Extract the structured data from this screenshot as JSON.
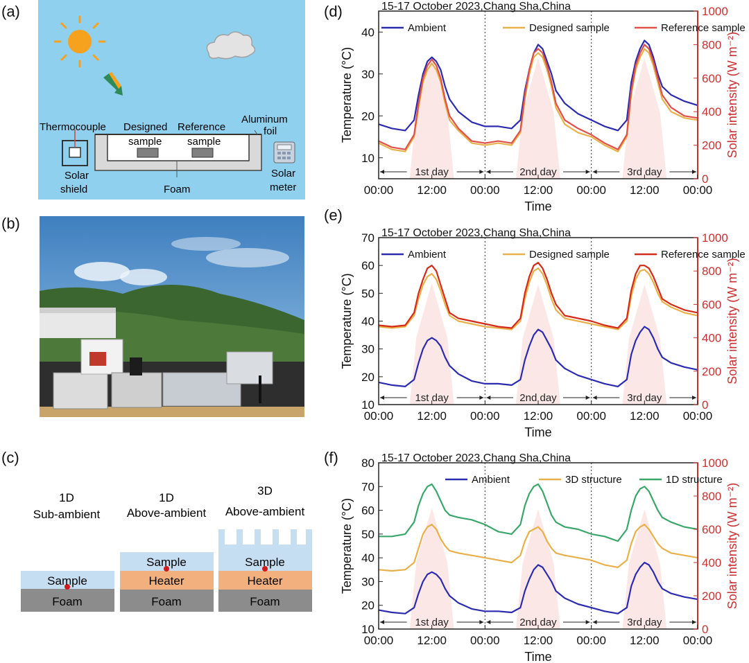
{
  "panel_labels": {
    "a": "(a)",
    "b": "(b)",
    "c": "(c)",
    "d": "(d)",
    "e": "(e)",
    "f": "(f)"
  },
  "panel_a": {
    "thermocouple": "Thermocouple",
    "designed_line1": "Designed",
    "designed_line2": "sample",
    "reference_line1": "Reference",
    "reference_line2": "sample",
    "aluminum_line1": "Aluminum",
    "aluminum_line2": "foil",
    "solar_shield_line1": "Solar",
    "solar_shield_line2": "shield",
    "foam": "Foam",
    "solar_meter_line1": "Solar",
    "solar_meter_line2": "meter",
    "colors": {
      "sky": "#8fd0ef",
      "sun": "#f6a21e",
      "foam": "#d9d9d9"
    }
  },
  "panel_c": {
    "col1_line1": "1D",
    "col1_line2": "Sub-ambient",
    "col2_line1": "1D",
    "col2_line2": "Above-ambient",
    "col3_line1": "3D",
    "col3_line2": "Above-ambient",
    "sample": "Sample",
    "heater": "Heater",
    "foam": "Foam",
    "colors": {
      "sample": "#c5def2",
      "heater": "#f2b07f",
      "foam": "#8c8c8c",
      "dot": "#d11b1b"
    }
  },
  "chart_data": [
    {
      "type": "line",
      "title": "15-17 October 2023,Chang Sha,China",
      "xlabel": "Time",
      "ylabel": "Temperature (°C)",
      "y2label": "Solar intensity (W m⁻²)",
      "ylim": [
        5,
        45
      ],
      "y2lim": [
        0,
        1000
      ],
      "yticks": [
        10,
        20,
        30,
        40
      ],
      "y2ticks": [
        0,
        200,
        400,
        600,
        800,
        1000
      ],
      "xticks": [
        "00:00",
        "12:00",
        "00:00",
        "12:00",
        "00:00",
        "12:00",
        "00:00"
      ],
      "day_labels": [
        "1st day",
        "2nd day",
        "3rd day"
      ],
      "legend": [
        "Ambient",
        "Designed sample",
        "Reference sample"
      ],
      "colors": {
        "Ambient": "#2b2bb0",
        "Designed sample": "#e8b04a",
        "Reference sample": "#e0504a",
        "solar": "#fce4e4",
        "y2axis": "#c93030"
      },
      "x": [
        0,
        3,
        6,
        8,
        9,
        10,
        11,
        12,
        13,
        14,
        15,
        16,
        18,
        21,
        24,
        27,
        30,
        32,
        33,
        34,
        35,
        36,
        37,
        38,
        39,
        40,
        42,
        45,
        48,
        51,
        54,
        56,
        57,
        58,
        59,
        60,
        61,
        62,
        63,
        64,
        66,
        69,
        72
      ],
      "series": [
        {
          "name": "Ambient",
          "values": [
            18,
            17,
            16.5,
            19,
            25,
            30,
            33,
            34,
            33,
            31,
            27,
            24,
            21,
            18.5,
            17.5,
            17.5,
            17,
            19,
            26,
            31,
            35,
            37,
            36,
            33,
            30,
            26,
            23,
            20.5,
            19,
            17.5,
            16.5,
            19,
            28,
            33,
            36,
            38,
            37,
            34,
            30,
            27,
            25,
            23.5,
            22.5
          ]
        },
        {
          "name": "Designed sample",
          "values": [
            13.5,
            12,
            11.5,
            15,
            22,
            28,
            31,
            32.5,
            31,
            28,
            23,
            19,
            16.5,
            13.5,
            13,
            13.5,
            13,
            16,
            24,
            30,
            34,
            35,
            34,
            31,
            27,
            22,
            18,
            16,
            15,
            13,
            11.5,
            15,
            25,
            31,
            34,
            36,
            35,
            32,
            28,
            24,
            21,
            19.5,
            19
          ]
        },
        {
          "name": "Reference sample",
          "values": [
            14,
            12.5,
            12,
            15.5,
            23,
            29,
            32,
            33.5,
            32,
            29,
            24,
            20,
            17,
            14,
            13.5,
            14,
            13.5,
            16.5,
            25,
            31,
            35,
            36,
            35,
            32,
            28,
            23,
            19,
            17,
            15.5,
            13.5,
            12,
            15.5,
            26,
            32,
            35,
            37,
            36,
            33,
            29,
            25,
            22,
            20,
            19.5
          ]
        }
      ],
      "solar": [
        {
          "start": 7,
          "end": 17,
          "peak": 730
        },
        {
          "start": 31,
          "end": 41,
          "peak": 720
        },
        {
          "start": 55,
          "end": 65,
          "peak": 720
        }
      ]
    },
    {
      "type": "line",
      "title": "15-17 October 2023,Chang Sha,China",
      "xlabel": "Time",
      "ylabel": "Temperature (°C)",
      "y2label": "Solar intensity (W m⁻²)",
      "ylim": [
        10,
        70
      ],
      "y2lim": [
        0,
        1000
      ],
      "yticks": [
        10,
        20,
        30,
        40,
        50,
        60,
        70
      ],
      "y2ticks": [
        0,
        200,
        400,
        600,
        800,
        1000
      ],
      "xticks": [
        "00:00",
        "12:00",
        "00:00",
        "12:00",
        "00:00",
        "12:00",
        "00:00"
      ],
      "day_labels": [
        "1st day",
        "2nd day",
        "3rd day"
      ],
      "legend": [
        "Ambient",
        "Designed sample",
        "Reference sample"
      ],
      "colors": {
        "Ambient": "#2b2bb0",
        "Designed sample": "#e8b04a",
        "Reference sample": "#d42a1a",
        "solar": "#fce4e4",
        "y2axis": "#c93030"
      },
      "x": [
        0,
        3,
        6,
        8,
        9,
        10,
        11,
        12,
        13,
        14,
        15,
        16,
        18,
        21,
        24,
        27,
        30,
        32,
        33,
        34,
        35,
        36,
        37,
        38,
        39,
        40,
        42,
        45,
        48,
        51,
        54,
        56,
        57,
        58,
        59,
        60,
        61,
        62,
        63,
        64,
        66,
        69,
        72
      ],
      "series": [
        {
          "name": "Ambient",
          "values": [
            18,
            17,
            16.5,
            19,
            25,
            30,
            33,
            34,
            33,
            31,
            27,
            24,
            21,
            18.5,
            17.5,
            17.5,
            17,
            19,
            26,
            31,
            35,
            37,
            36,
            33,
            30,
            26,
            23,
            20.5,
            19,
            17.5,
            16.5,
            19,
            28,
            33,
            36,
            38,
            37,
            34,
            30,
            27,
            25,
            23.5,
            22.5
          ]
        },
        {
          "name": "Designed sample",
          "values": [
            38,
            37.5,
            38,
            42,
            48,
            53,
            56,
            57,
            55,
            51,
            46,
            42,
            40,
            39,
            38,
            37.5,
            37,
            40,
            48,
            54,
            58,
            59,
            57,
            53,
            48,
            44,
            41,
            40,
            39,
            38,
            37,
            40,
            49,
            55,
            58,
            58.5,
            57,
            54,
            50,
            47,
            45,
            43,
            42
          ]
        },
        {
          "name": "Reference sample",
          "values": [
            38.5,
            38,
            38.5,
            43,
            50,
            55,
            59,
            60,
            58,
            53,
            48,
            43,
            41,
            40,
            39,
            38,
            37.5,
            41,
            50,
            56,
            60,
            61,
            59,
            55,
            50,
            46,
            42,
            41,
            40,
            38.5,
            37.5,
            41,
            51,
            57,
            60,
            60,
            59,
            56,
            52,
            48,
            46,
            44,
            43
          ]
        }
      ],
      "solar": [
        {
          "start": 7,
          "end": 17,
          "peak": 730
        },
        {
          "start": 31,
          "end": 41,
          "peak": 720
        },
        {
          "start": 55,
          "end": 65,
          "peak": 720
        }
      ]
    },
    {
      "type": "line",
      "title": "15-17 October 2023,Chang Sha,China",
      "xlabel": "Time",
      "ylabel": "Temperature (°C)",
      "y2label": "Solar intensity (W m⁻²)",
      "ylim": [
        10,
        80
      ],
      "y2lim": [
        0,
        1000
      ],
      "yticks": [
        10,
        20,
        30,
        40,
        50,
        60,
        70,
        80
      ],
      "y2ticks": [
        0,
        200,
        400,
        600,
        800,
        1000
      ],
      "xticks": [
        "00:00",
        "12:00",
        "00:00",
        "12:00",
        "00:00",
        "12:00",
        "00:00"
      ],
      "day_labels": [
        "1st day",
        "2nd day",
        "3rd day"
      ],
      "legend": [
        "Ambient",
        "3D structure",
        "1D structure"
      ],
      "colors": {
        "Ambient": "#2b2bb0",
        "3D structure": "#e8b04a",
        "1D structure": "#3aa66a",
        "solar": "#fce4e4",
        "y2axis": "#c93030"
      },
      "x": [
        0,
        3,
        6,
        8,
        9,
        10,
        11,
        12,
        13,
        14,
        15,
        16,
        18,
        21,
        24,
        27,
        30,
        32,
        33,
        34,
        35,
        36,
        37,
        38,
        39,
        40,
        42,
        45,
        48,
        51,
        54,
        56,
        57,
        58,
        59,
        60,
        61,
        62,
        63,
        64,
        66,
        69,
        72
      ],
      "series": [
        {
          "name": "Ambient",
          "values": [
            18,
            17,
            16.5,
            19,
            25,
            30,
            33,
            34,
            33,
            31,
            27,
            24,
            21,
            18.5,
            17.5,
            17.5,
            17,
            19,
            26,
            31,
            35,
            37,
            36,
            33,
            30,
            26,
            23,
            20.5,
            19,
            17.5,
            16.5,
            19,
            28,
            33,
            36,
            38,
            37,
            34,
            30,
            27,
            25,
            23.5,
            22.5
          ]
        },
        {
          "name": "3D structure",
          "values": [
            35,
            34.5,
            35,
            38,
            44,
            50,
            53,
            54,
            52,
            48,
            45,
            43,
            42,
            41,
            40,
            39,
            38,
            41,
            47,
            51,
            52,
            53,
            51,
            47,
            44,
            42,
            41,
            40,
            39,
            37,
            36,
            39,
            46,
            51,
            53,
            54,
            52,
            49,
            46,
            44,
            42,
            41,
            40
          ]
        },
        {
          "name": "1D structure",
          "values": [
            49,
            49,
            50,
            55,
            62,
            67,
            70,
            71,
            68,
            64,
            60,
            58,
            57,
            56,
            54,
            51,
            50,
            54,
            62,
            67,
            70,
            71,
            68,
            63,
            58,
            55,
            53,
            52,
            50,
            49,
            47,
            52,
            60,
            66,
            69,
            70,
            68,
            64,
            60,
            57,
            55,
            53,
            52
          ]
        }
      ],
      "solar": [
        {
          "start": 7,
          "end": 17,
          "peak": 730
        },
        {
          "start": 31,
          "end": 41,
          "peak": 720
        },
        {
          "start": 55,
          "end": 65,
          "peak": 720
        }
      ]
    }
  ]
}
